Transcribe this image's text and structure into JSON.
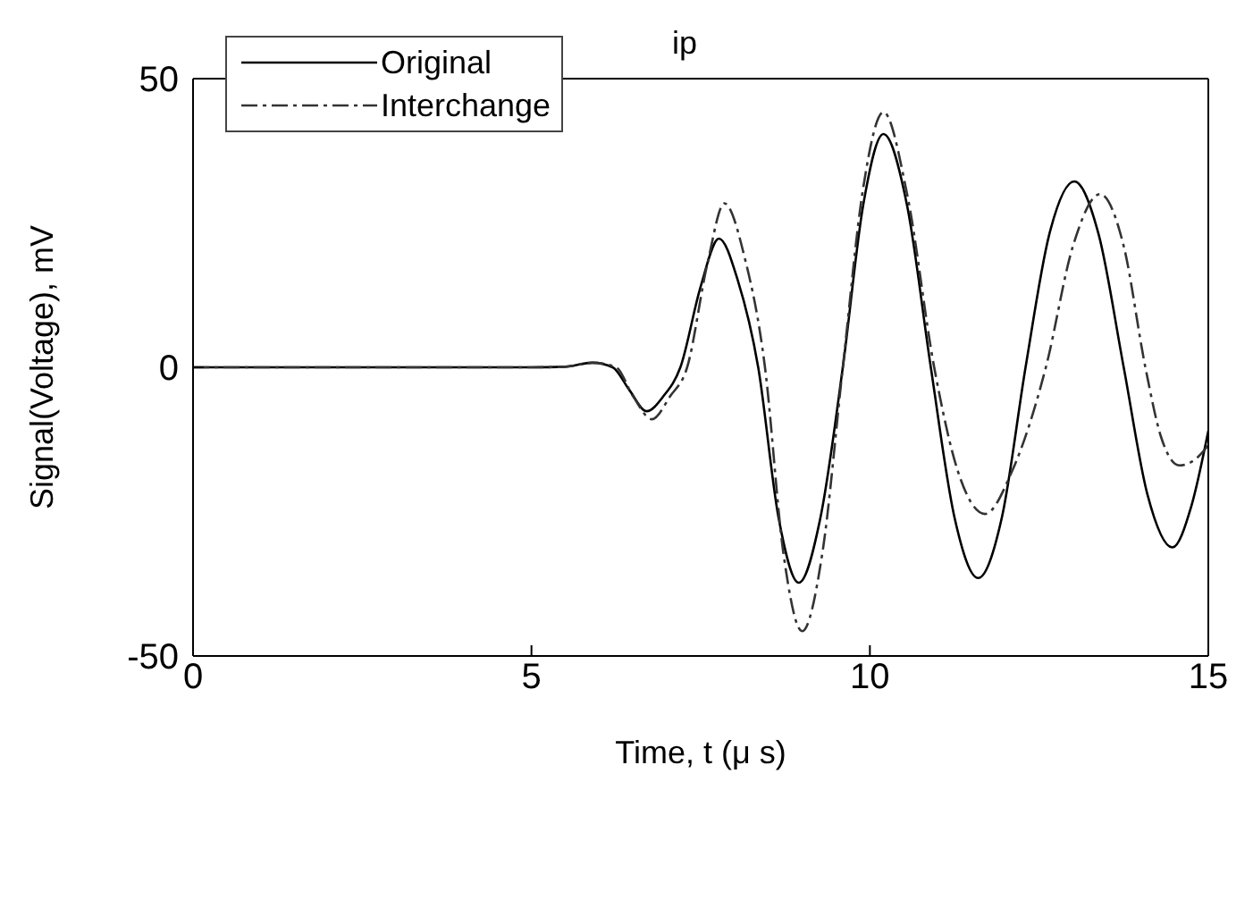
{
  "chart_data": {
    "type": "line",
    "title": "ip",
    "xlabel": "Time,  t (μ s)",
    "ylabel": "Signal(Voltage),  mV",
    "xlim": [
      0,
      15
    ],
    "xticks": [
      0,
      5,
      10,
      15
    ],
    "ylim": [
      -50,
      50
    ],
    "yticks": [
      -50,
      0,
      50
    ],
    "legend": "top left",
    "marker": "none",
    "series": [
      {
        "name": "Original",
        "color": "#000000",
        "line_style": "solid",
        "x": [
          0,
          5,
          5.5,
          5.9,
          6.2,
          6.45,
          6.7,
          6.95,
          7.2,
          7.5,
          7.77,
          8.05,
          8.35,
          8.65,
          8.95,
          9.27,
          9.6,
          9.9,
          10.2,
          10.55,
          10.9,
          11.25,
          11.6,
          11.95,
          12.3,
          12.65,
          13.02,
          13.38,
          13.75,
          14.1,
          14.47,
          14.75,
          15
        ],
        "values": [
          0,
          0,
          0.1,
          0.8,
          0,
          -4,
          -7.6,
          -5,
          0,
          14,
          22.3,
          15,
          0,
          -26,
          -37.3,
          -26,
          0,
          28,
          40.4,
          28,
          0,
          -26,
          -36.5,
          -26,
          0,
          23,
          32.2,
          23,
          0,
          -22,
          -31.2,
          -24,
          -11
        ]
      },
      {
        "name": "Interchange",
        "color": "#333333",
        "line_style": "dashdot",
        "x": [
          0,
          5,
          5.5,
          5.9,
          6.25,
          6.5,
          6.78,
          7.05,
          7.3,
          7.6,
          7.85,
          8.15,
          8.45,
          8.72,
          9.0,
          9.3,
          9.6,
          9.9,
          10.2,
          10.55,
          10.95,
          11.3,
          11.7,
          12.1,
          12.6,
          13.0,
          13.4,
          13.75,
          14.07,
          14.3,
          14.57,
          14.8,
          15
        ],
        "values": [
          0,
          0,
          0.1,
          0.8,
          0,
          -5,
          -9,
          -5,
          0,
          18,
          28.4,
          19,
          0,
          -32,
          -45.7,
          -32,
          0,
          31,
          44.2,
          30,
          0,
          -18,
          -25.4,
          -18,
          0,
          21,
          30,
          21,
          0,
          -12,
          -17,
          -16,
          -13.5
        ]
      }
    ]
  }
}
